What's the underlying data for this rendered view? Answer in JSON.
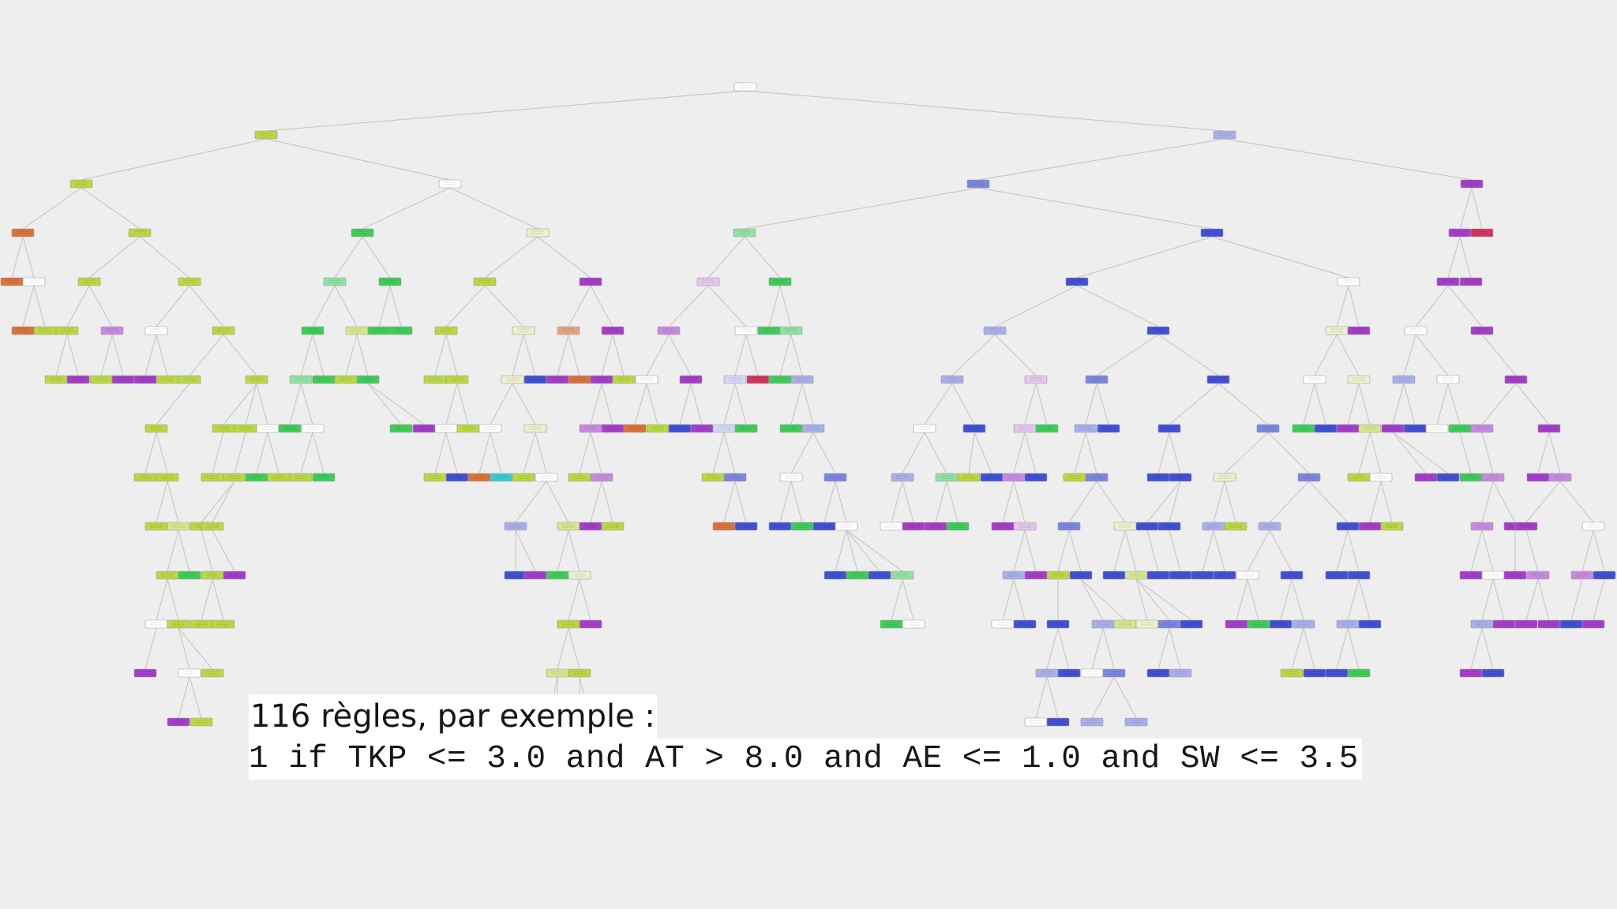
{
  "caption": {
    "title": "116 règles, par exemple :",
    "rule": "1 if TKP <= 3.0 and AT > 8.0 and AE <= 1.0 and SW <= 3.5"
  },
  "colors": {
    "background": "#efeeee",
    "edge": "#c9c9c9",
    "node_border": "#9a9a9a",
    "classes": {
      "white": "#ffffff",
      "lime": "#b9d842",
      "lime_light": "#d6e68e",
      "lime_pale": "#ebf1cc",
      "orange": "#d9733c",
      "orange_light": "#e7a37c",
      "green": "#3fcc59",
      "green_light": "#8ee3a0",
      "blue": "#4150d4",
      "blue_mid": "#7c86e0",
      "blue_light": "#a8b0ea",
      "blue_pale": "#d3d7f5",
      "purple": "#a43ec8",
      "purple_light": "#c889e0",
      "purple_pale": "#e2c6ee",
      "crimson": "#d3345f",
      "cyan": "#3fc8d8"
    }
  }
}
